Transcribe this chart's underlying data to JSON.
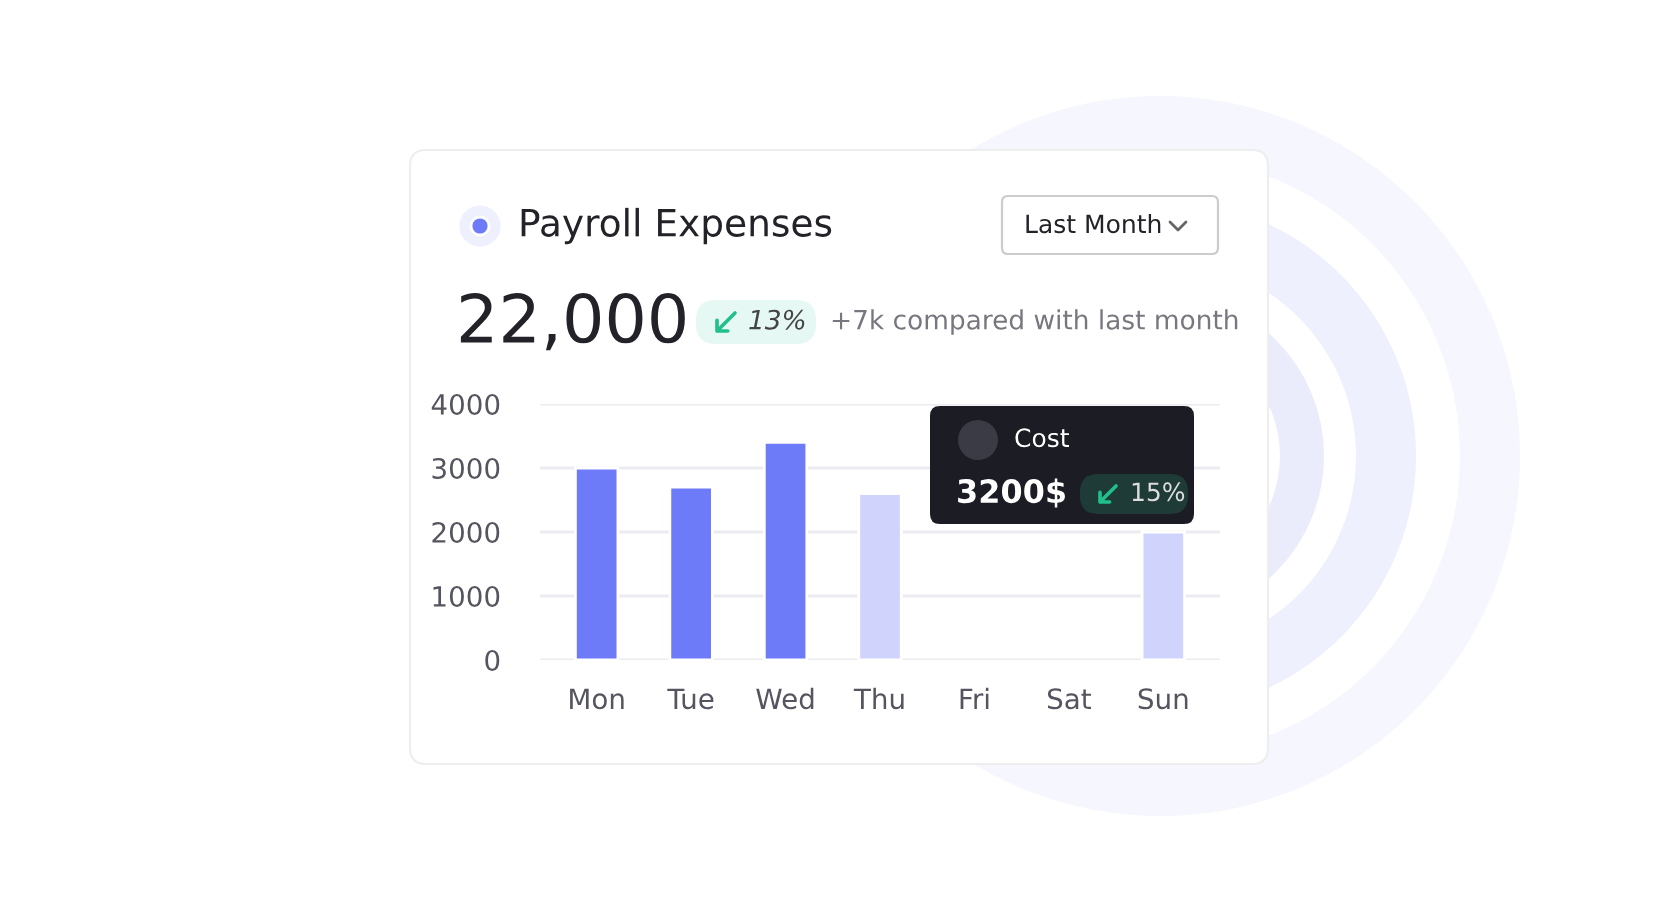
{
  "chart_data": {
    "type": "bar",
    "title": "Payroll Expenses",
    "categories": [
      "Mon",
      "Tue",
      "Wed",
      "Thu",
      "Fri",
      "Sat",
      "Sun"
    ],
    "values": [
      3000,
      2700,
      3400,
      2600,
      null,
      null,
      2000
    ],
    "colors": [
      "#6e7bf9",
      "#6e7bf9",
      "#6e7bf9",
      "#d0d4fc",
      "#d0d4fc",
      "#d0d4fc",
      "#d0d4fc"
    ],
    "ylim": [
      0,
      4000
    ],
    "yticks": [
      0,
      1000,
      2000,
      3000,
      4000
    ],
    "grid": "y",
    "annotations": [
      "Last Month",
      "22,000",
      "13%",
      "+7k compared with last month",
      "Cost",
      "3200$",
      "15%"
    ]
  }
}
